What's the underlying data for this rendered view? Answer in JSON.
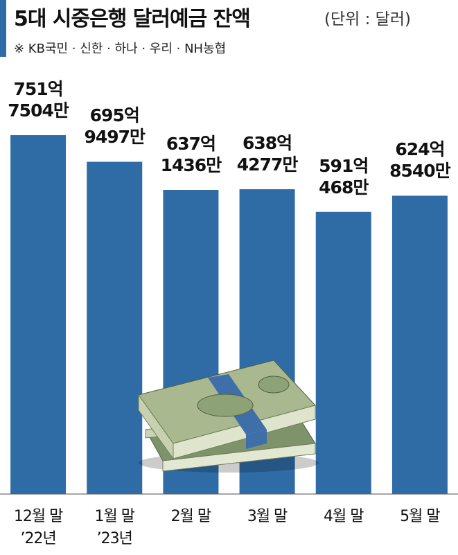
{
  "chart_data": {
    "type": "bar",
    "title": "5대 시중은행 달러예금 잔액",
    "unit_note": "(단위 : 달러)",
    "subtitle": "※ KB국민 · 신한 · 하나 · 우리 · NH농협",
    "categories": [
      "12월 말\n’22년",
      "1월 말\n’23년",
      "2월 말",
      "3월 말",
      "4월 말",
      "5월 말"
    ],
    "values": [
      75175040000,
      69594970000,
      63714360000,
      63842770000,
      59104680000,
      62485400000
    ],
    "value_labels": [
      "751억\n7504만",
      "695억\n9497만",
      "637억\n1436만",
      "638억\n4277만",
      "591억\n468만",
      "624억\n8540만"
    ],
    "color": "#2f6ca6",
    "ylim": [
      0,
      100000000000
    ]
  }
}
